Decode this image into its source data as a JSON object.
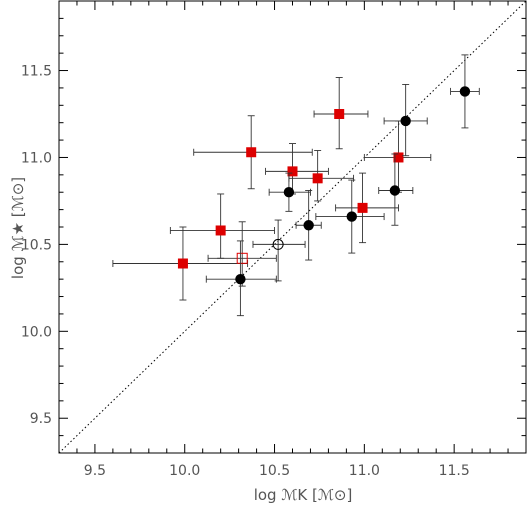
{
  "chart_data": {
    "type": "scatter",
    "title": "",
    "xlabel": "log ℳK [ℳ⊙]",
    "ylabel": "log ℳ★ [ℳ⊙]",
    "xlim": [
      9.3,
      11.9
    ],
    "ylim": [
      9.3,
      11.9
    ],
    "x_ticks": [
      "9.5",
      "10.0",
      "10.5",
      "11.0",
      "11.5"
    ],
    "y_ticks": [
      "9.5",
      "10.0",
      "10.5",
      "11.0",
      "11.5"
    ],
    "grid": false,
    "diagonal_line": {
      "style": "dotted",
      "from": [
        9.3,
        9.3
      ],
      "to": [
        11.9,
        11.9
      ]
    },
    "colors": {
      "red": "#dd0000",
      "black": "#000000",
      "error_bar": "#333333"
    },
    "series": [
      {
        "marker": "filled-square",
        "color": "#dd0000",
        "points": [
          {
            "x": 9.99,
            "y": 10.39,
            "xerr": [
              0.39,
              0.36
            ],
            "yerr": [
              0.21,
              0.21
            ]
          },
          {
            "x": 10.2,
            "y": 10.58,
            "xerr": [
              0.28,
              0.3
            ],
            "yerr": [
              0.16,
              0.21
            ]
          },
          {
            "x": 10.37,
            "y": 11.03,
            "xerr": [
              0.32,
              0.34
            ],
            "yerr": [
              0.21,
              0.21
            ]
          },
          {
            "x": 10.6,
            "y": 10.92,
            "xerr": [
              0.15,
              0.2
            ],
            "yerr": [
              0.13,
              0.16
            ]
          },
          {
            "x": 10.74,
            "y": 10.88,
            "xerr": [
              0.16,
              0.2
            ],
            "yerr": [
              0.13,
              0.16
            ]
          },
          {
            "x": 10.86,
            "y": 11.25,
            "xerr": [
              0.14,
              0.16
            ],
            "yerr": [
              0.2,
              0.21
            ]
          },
          {
            "x": 10.99,
            "y": 10.71,
            "xerr": [
              0.15,
              0.2
            ],
            "yerr": [
              0.2,
              0.2
            ]
          },
          {
            "x": 11.19,
            "y": 11.0,
            "xerr": [
              0.19,
              0.18
            ],
            "yerr": [
              0.2,
              0.21
            ]
          }
        ]
      },
      {
        "marker": "open-square",
        "color": "#dd0000",
        "points": [
          {
            "x": 10.32,
            "y": 10.42,
            "xerr": [
              0.19,
              0.19
            ],
            "yerr": [
              0.16,
              0.21
            ]
          }
        ]
      },
      {
        "marker": "filled-circle",
        "color": "#000000",
        "points": [
          {
            "x": 10.31,
            "y": 10.3,
            "xerr": [
              0.19,
              0.2
            ],
            "yerr": [
              0.21,
              0.22
            ]
          },
          {
            "x": 10.58,
            "y": 10.8,
            "xerr": [
              0.11,
              0.12
            ],
            "yerr": [
              0.11,
              0.11
            ]
          },
          {
            "x": 10.69,
            "y": 10.61,
            "xerr": [
              0.07,
              0.07
            ],
            "yerr": [
              0.2,
              0.2
            ]
          },
          {
            "x": 10.93,
            "y": 10.66,
            "xerr": [
              0.2,
              0.18
            ],
            "yerr": [
              0.21,
              0.21
            ]
          },
          {
            "x": 11.17,
            "y": 10.81,
            "xerr": [
              0.09,
              0.1
            ],
            "yerr": [
              0.2,
              0.21
            ]
          },
          {
            "x": 11.23,
            "y": 11.21,
            "xerr": [
              0.12,
              0.12
            ],
            "yerr": [
              0.2,
              0.21
            ]
          },
          {
            "x": 11.56,
            "y": 11.38,
            "xerr": [
              0.08,
              0.08
            ],
            "yerr": [
              0.21,
              0.21
            ]
          }
        ]
      },
      {
        "marker": "open-circle",
        "color": "#000000",
        "points": [
          {
            "x": 10.52,
            "y": 10.5,
            "xerr": [
              0.14,
              0.15
            ],
            "yerr": [
              0.21,
              0.14
            ]
          }
        ]
      }
    ]
  }
}
